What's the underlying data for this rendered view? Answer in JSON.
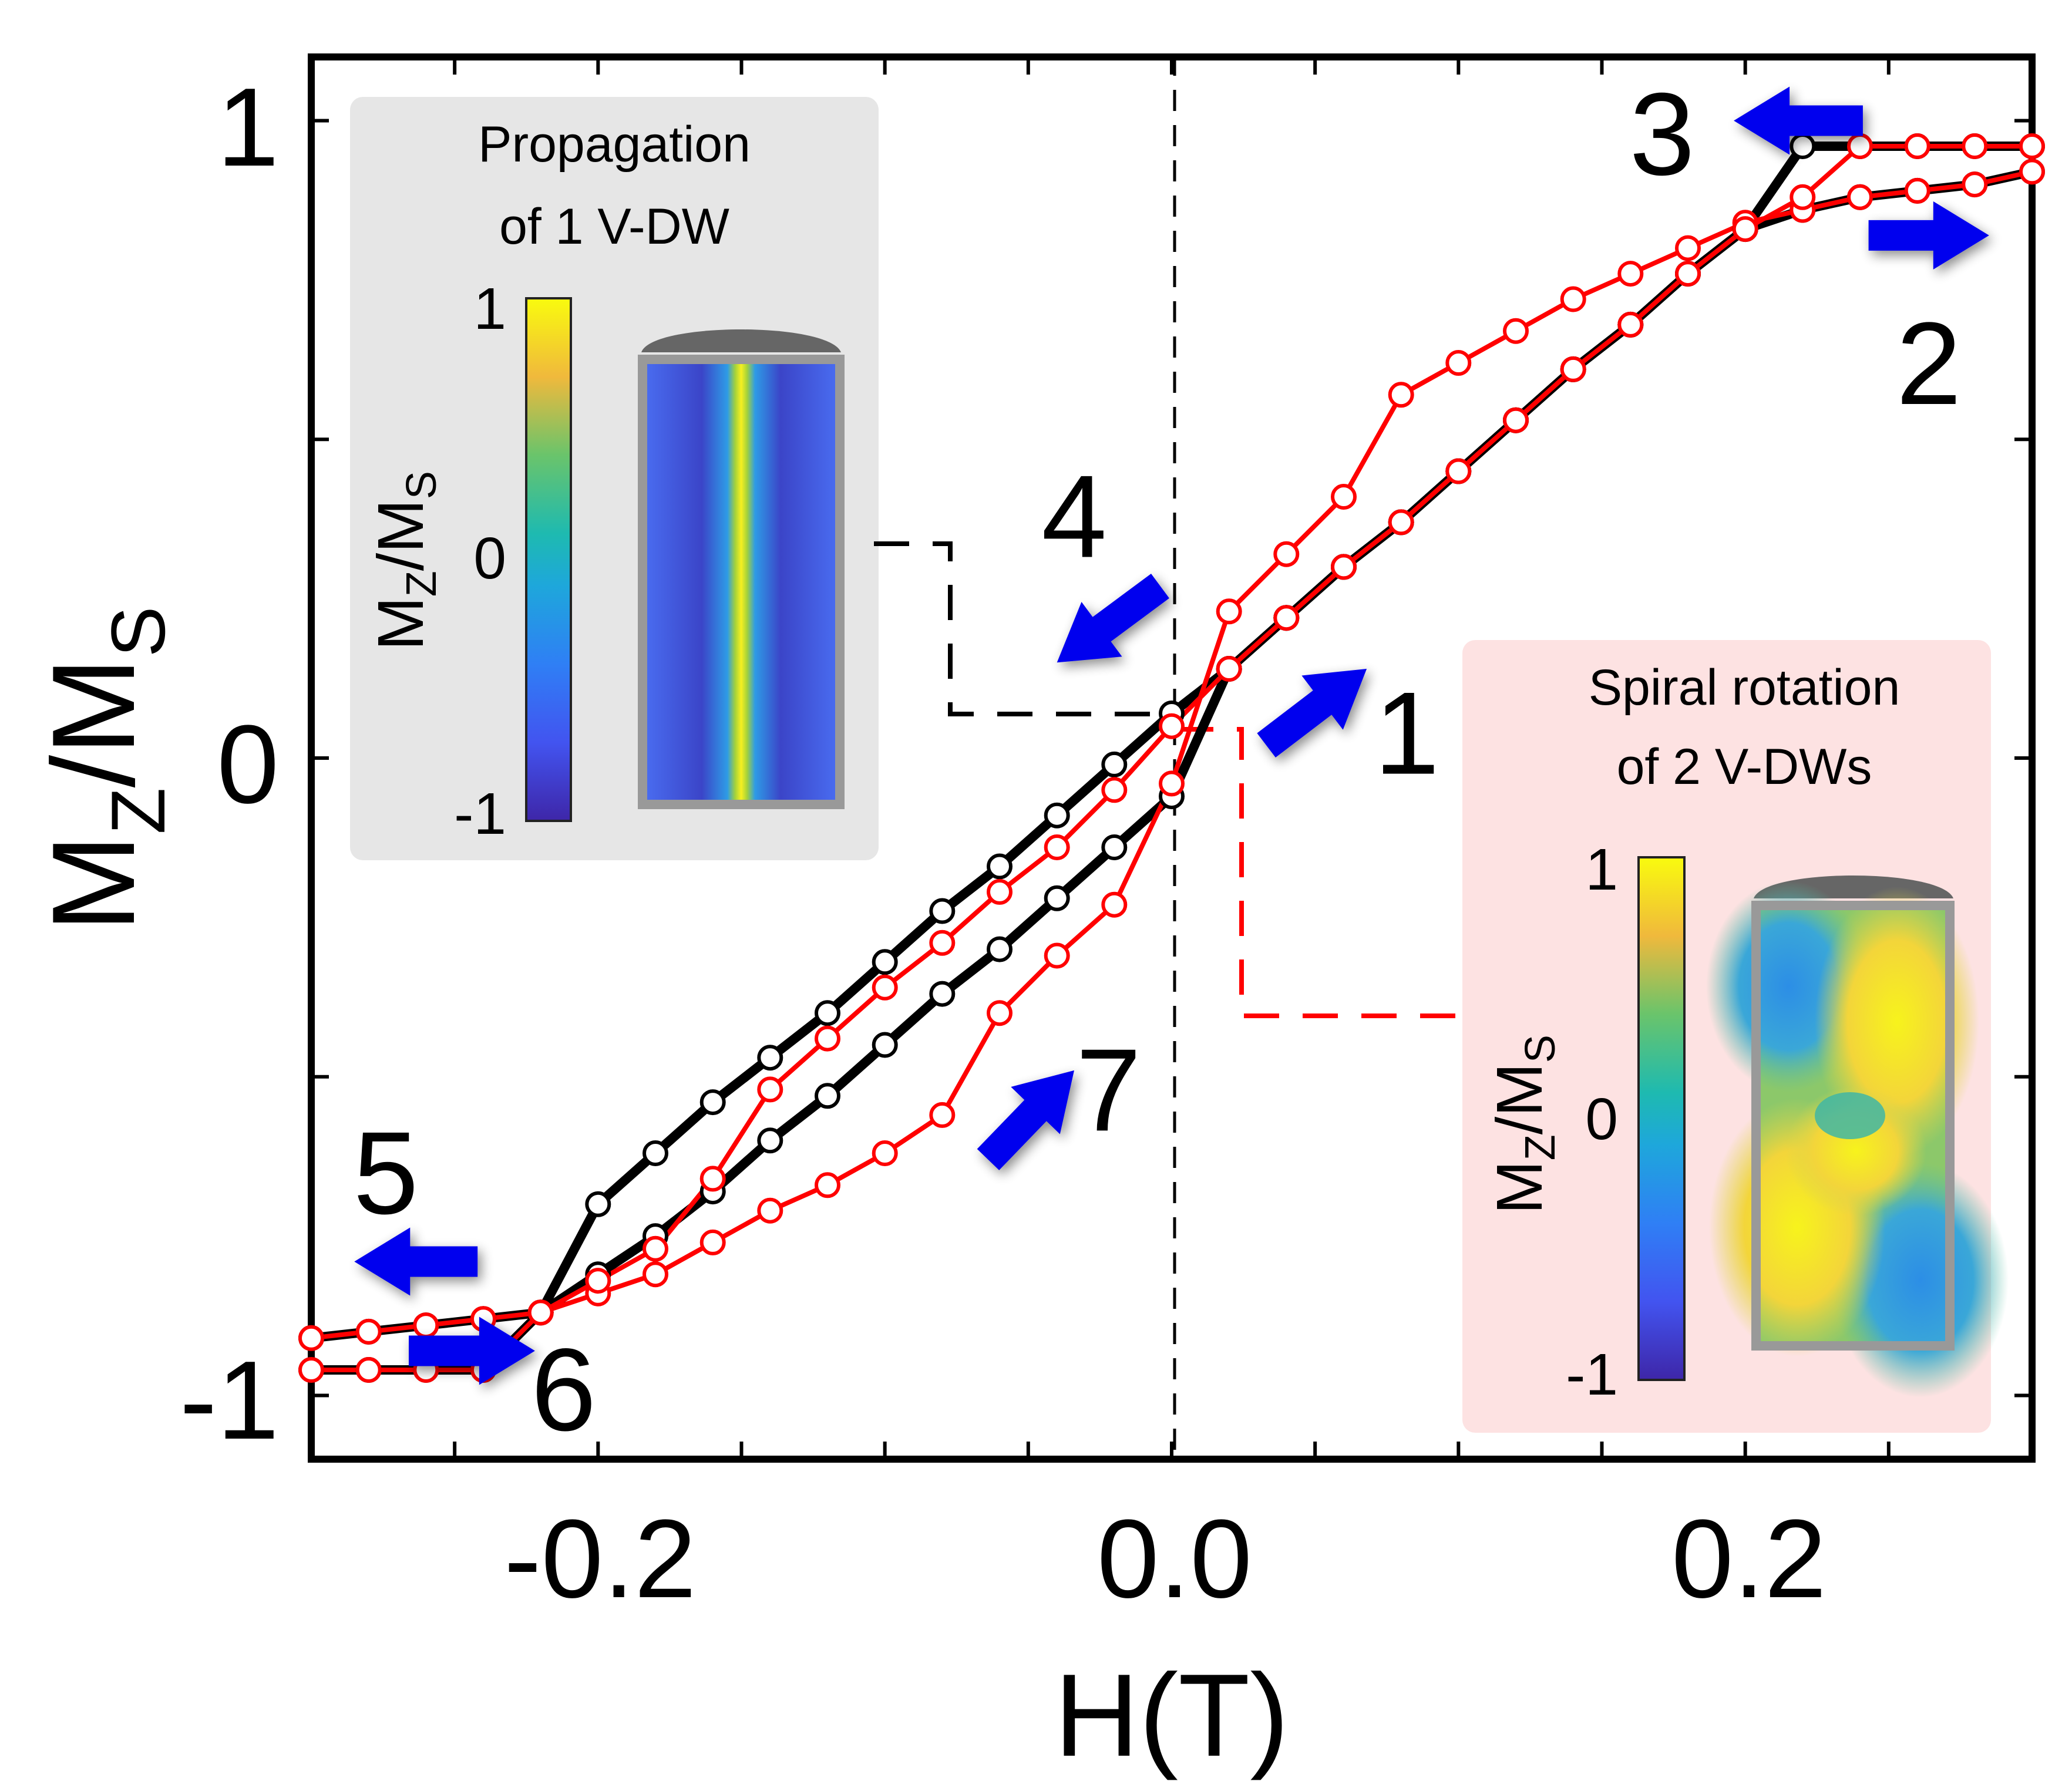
{
  "chart_data": {
    "type": "line",
    "xlabel": "H(T)",
    "ylabel": "M_Z/M_S",
    "xlim": [
      -0.3,
      0.3
    ],
    "ylim": [
      -1.1,
      1.1
    ],
    "xticks": [
      -0.2,
      0.0,
      0.2
    ],
    "xtick_labels": [
      "-0.2",
      "0.0",
      "0.2"
    ],
    "yticks": [
      -1,
      0,
      1
    ],
    "ytick_labels": [
      "-1",
      "0",
      "1"
    ],
    "grid": false,
    "legend": "none",
    "colors": {
      "black_curve": "#000000",
      "red_curve": "#ff0000",
      "arrows": "#0000ee",
      "propagation_inset_bg": "#e6e6e6",
      "spiral_inset_bg": "#fde2e2"
    },
    "series": [
      {
        "color": "black",
        "points": [
          [
            -0.3,
            -0.96
          ],
          [
            -0.28,
            -0.96
          ],
          [
            -0.26,
            -0.96
          ],
          [
            -0.24,
            -0.96
          ],
          [
            -0.22,
            -0.87
          ],
          [
            -0.2,
            -0.7
          ],
          [
            -0.18,
            -0.62
          ],
          [
            -0.16,
            -0.54
          ],
          [
            -0.14,
            -0.47
          ],
          [
            -0.12,
            -0.4
          ],
          [
            -0.1,
            -0.32
          ],
          [
            -0.08,
            -0.24
          ],
          [
            -0.06,
            -0.17
          ],
          [
            -0.04,
            -0.09
          ],
          [
            -0.02,
            -0.01
          ],
          [
            0.0,
            0.07
          ],
          [
            0.02,
            0.14
          ],
          [
            0.04,
            0.22
          ],
          [
            0.06,
            0.3
          ],
          [
            0.08,
            0.37
          ],
          [
            0.1,
            0.45
          ],
          [
            0.12,
            0.53
          ],
          [
            0.14,
            0.61
          ],
          [
            0.16,
            0.68
          ],
          [
            0.18,
            0.76
          ],
          [
            0.2,
            0.83
          ],
          [
            0.22,
            0.96
          ],
          [
            0.24,
            0.96
          ],
          [
            0.26,
            0.96
          ],
          [
            0.28,
            0.96
          ],
          [
            0.3,
            0.96
          ]
        ]
      },
      {
        "color": "black",
        "points": [
          [
            -0.3,
            -0.91
          ],
          [
            -0.28,
            -0.9
          ],
          [
            -0.26,
            -0.89
          ],
          [
            -0.24,
            -0.88
          ],
          [
            -0.22,
            -0.87
          ],
          [
            -0.2,
            -0.81
          ],
          [
            -0.18,
            -0.75
          ],
          [
            -0.16,
            -0.68
          ],
          [
            -0.14,
            -0.6
          ],
          [
            -0.12,
            -0.53
          ],
          [
            -0.1,
            -0.45
          ],
          [
            -0.08,
            -0.37
          ],
          [
            -0.06,
            -0.3
          ],
          [
            -0.04,
            -0.22
          ],
          [
            -0.02,
            -0.14
          ],
          [
            0.0,
            -0.06
          ],
          [
            0.02,
            0.14
          ],
          [
            0.04,
            0.22
          ],
          [
            0.06,
            0.3
          ],
          [
            0.08,
            0.37
          ],
          [
            0.1,
            0.45
          ],
          [
            0.12,
            0.53
          ],
          [
            0.14,
            0.61
          ],
          [
            0.16,
            0.68
          ],
          [
            0.18,
            0.76
          ],
          [
            0.2,
            0.83
          ],
          [
            0.22,
            0.86
          ],
          [
            0.24,
            0.88
          ],
          [
            0.26,
            0.89
          ],
          [
            0.28,
            0.9
          ],
          [
            0.3,
            0.92
          ]
        ]
      },
      {
        "color": "red",
        "points": [
          [
            -0.3,
            -0.91
          ],
          [
            -0.28,
            -0.9
          ],
          [
            -0.26,
            -0.89
          ],
          [
            -0.24,
            -0.88
          ],
          [
            -0.22,
            -0.87
          ],
          [
            -0.2,
            -0.84
          ],
          [
            -0.18,
            -0.81
          ],
          [
            -0.16,
            -0.76
          ],
          [
            -0.14,
            -0.71
          ],
          [
            -0.12,
            -0.67
          ],
          [
            -0.1,
            -0.62
          ],
          [
            -0.08,
            -0.56
          ],
          [
            -0.06,
            -0.4
          ],
          [
            -0.04,
            -0.31
          ],
          [
            -0.02,
            -0.23
          ],
          [
            0.0,
            -0.04
          ],
          [
            0.02,
            0.23
          ],
          [
            0.04,
            0.32
          ],
          [
            0.06,
            0.41
          ],
          [
            0.08,
            0.57
          ],
          [
            0.1,
            0.62
          ],
          [
            0.12,
            0.67
          ],
          [
            0.14,
            0.72
          ],
          [
            0.16,
            0.76
          ],
          [
            0.18,
            0.8
          ],
          [
            0.2,
            0.84
          ],
          [
            0.22,
            0.86
          ],
          [
            0.24,
            0.88
          ],
          [
            0.26,
            0.89
          ],
          [
            0.28,
            0.9
          ],
          [
            0.3,
            0.92
          ]
        ]
      },
      {
        "color": "red",
        "points": [
          [
            -0.3,
            -0.96
          ],
          [
            -0.28,
            -0.96
          ],
          [
            -0.26,
            -0.96
          ],
          [
            -0.24,
            -0.96
          ],
          [
            -0.22,
            -0.87
          ],
          [
            -0.2,
            -0.82
          ],
          [
            -0.18,
            -0.77
          ],
          [
            -0.16,
            -0.66
          ],
          [
            -0.14,
            -0.52
          ],
          [
            -0.12,
            -0.44
          ],
          [
            -0.1,
            -0.36
          ],
          [
            -0.08,
            -0.29
          ],
          [
            -0.06,
            -0.21
          ],
          [
            -0.04,
            -0.14
          ],
          [
            -0.02,
            -0.05
          ],
          [
            0.0,
            0.05
          ],
          [
            0.02,
            0.14
          ],
          [
            0.04,
            0.22
          ],
          [
            0.06,
            0.3
          ],
          [
            0.08,
            0.37
          ],
          [
            0.1,
            0.45
          ],
          [
            0.12,
            0.53
          ],
          [
            0.14,
            0.61
          ],
          [
            0.16,
            0.68
          ],
          [
            0.18,
            0.76
          ],
          [
            0.2,
            0.83
          ],
          [
            0.22,
            0.88
          ],
          [
            0.24,
            0.96
          ],
          [
            0.26,
            0.96
          ],
          [
            0.28,
            0.96
          ],
          [
            0.3,
            0.96
          ]
        ]
      }
    ],
    "annotations": [
      {
        "text": "1",
        "x": 0.082,
        "y": 0.04
      },
      {
        "text": "2",
        "x": 0.264,
        "y": 0.62
      },
      {
        "text": "3",
        "x": 0.171,
        "y": 0.98
      },
      {
        "text": "4",
        "x": -0.034,
        "y": 0.38
      },
      {
        "text": "5",
        "x": -0.274,
        "y": -0.65
      },
      {
        "text": "6",
        "x": -0.212,
        "y": -0.99
      },
      {
        "text": "7",
        "x": -0.022,
        "y": -0.52
      }
    ],
    "arrows": [
      {
        "from": [
          0.033,
          0.02
        ],
        "to": [
          0.068,
          0.14
        ]
      },
      {
        "from": [
          0.243,
          0.82
        ],
        "to": [
          0.285,
          0.82
        ]
      },
      {
        "from": [
          0.241,
          1.0
        ],
        "to": [
          0.196,
          1.0
        ]
      },
      {
        "from": [
          -0.004,
          0.27
        ],
        "to": [
          -0.04,
          0.15
        ]
      },
      {
        "from": [
          -0.242,
          -0.79
        ],
        "to": [
          -0.285,
          -0.79
        ]
      },
      {
        "from": [
          -0.266,
          -0.93
        ],
        "to": [
          -0.222,
          -0.93
        ]
      },
      {
        "from": [
          -0.064,
          -0.63
        ],
        "to": [
          -0.034,
          -0.49
        ]
      }
    ],
    "insets": [
      {
        "title": [
          "Propagation",
          "of 1 V-DW"
        ],
        "colorbar_label": "M_Z/M_S",
        "colorbar_ticks": [
          "1",
          "0",
          "-1"
        ]
      },
      {
        "title": [
          "Spiral rotation",
          "of 2 V-DWs"
        ],
        "colorbar_label": "M_Z/M_S",
        "colorbar_ticks": [
          "1",
          "0",
          "-1"
        ]
      }
    ]
  }
}
